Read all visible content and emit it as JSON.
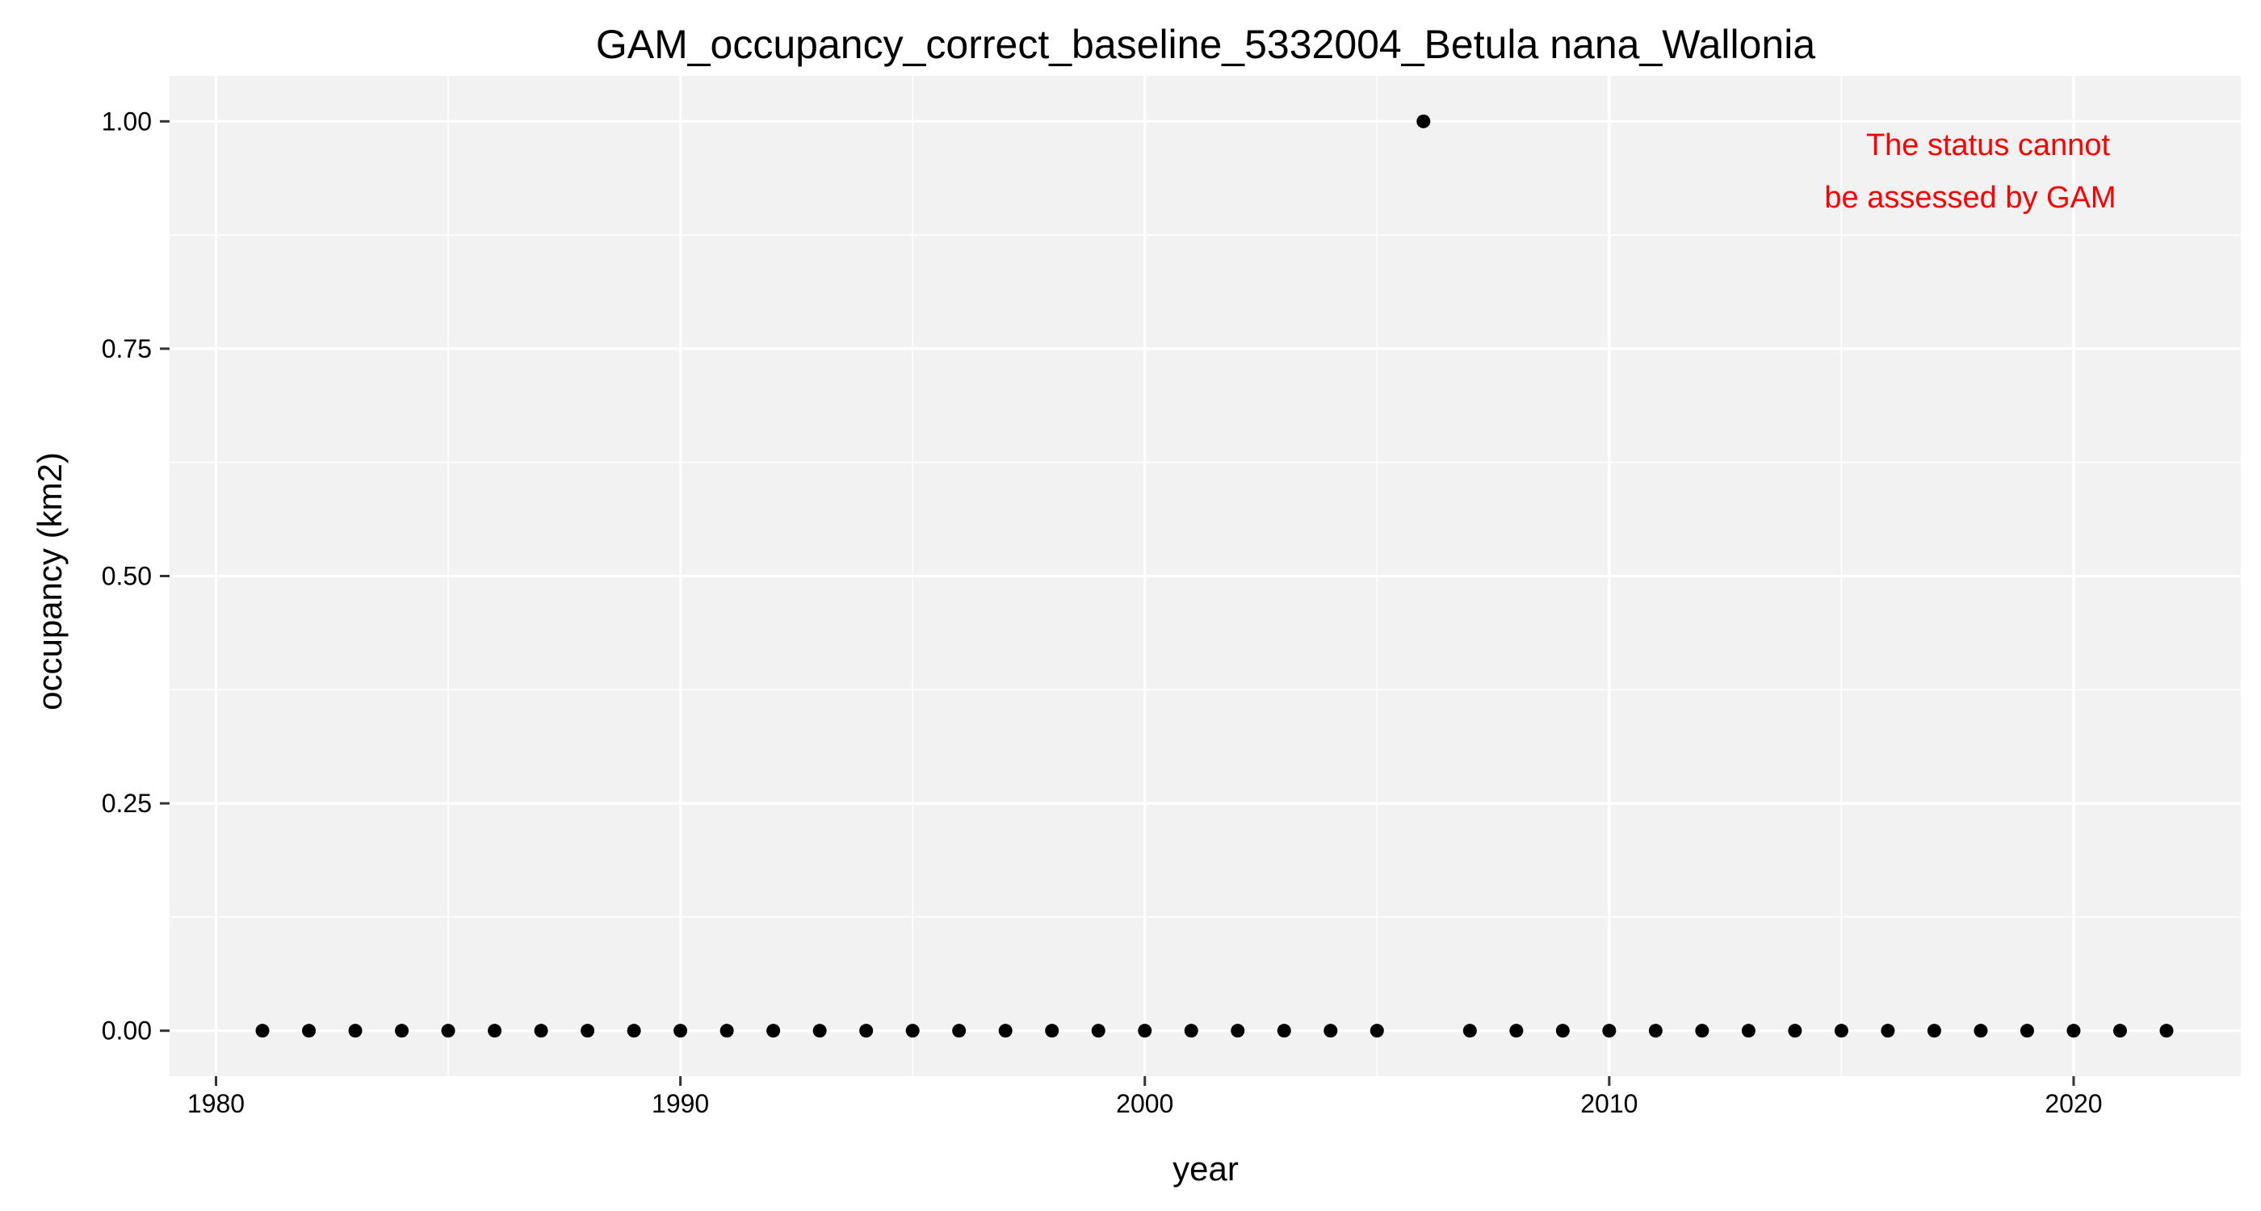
{
  "chart_data": {
    "type": "scatter",
    "title": "GAM_occupancy_correct_baseline_5332004_Betula nana_Wallonia",
    "xlabel": "year",
    "ylabel": "occupancy (km2)",
    "xlim": [
      1979,
      2023.6
    ],
    "ylim": [
      -0.05,
      1.05
    ],
    "x_ticks": [
      1980,
      1990,
      2000,
      2010,
      2020
    ],
    "x_tick_labels": [
      "1980",
      "1990",
      "2000",
      "2010",
      "2020"
    ],
    "y_ticks": [
      0,
      0.25,
      0.5,
      0.75,
      1.0
    ],
    "y_tick_labels": [
      "0.00",
      "0.25",
      "0.50",
      "0.75",
      "1.00"
    ],
    "grid": true,
    "panel_color": "#f2f2f2",
    "point_color": "#000000",
    "annotation_color": "#ff0000",
    "annotation_lines": [
      "The status cannot",
      "be assessed by GAM"
    ],
    "points": [
      {
        "x": 1981,
        "y": 0
      },
      {
        "x": 1982,
        "y": 0
      },
      {
        "x": 1983,
        "y": 0
      },
      {
        "x": 1984,
        "y": 0
      },
      {
        "x": 1985,
        "y": 0
      },
      {
        "x": 1986,
        "y": 0
      },
      {
        "x": 1987,
        "y": 0
      },
      {
        "x": 1988,
        "y": 0
      },
      {
        "x": 1989,
        "y": 0
      },
      {
        "x": 1990,
        "y": 0
      },
      {
        "x": 1991,
        "y": 0
      },
      {
        "x": 1992,
        "y": 0
      },
      {
        "x": 1993,
        "y": 0
      },
      {
        "x": 1994,
        "y": 0
      },
      {
        "x": 1995,
        "y": 0
      },
      {
        "x": 1996,
        "y": 0
      },
      {
        "x": 1997,
        "y": 0
      },
      {
        "x": 1998,
        "y": 0
      },
      {
        "x": 1999,
        "y": 0
      },
      {
        "x": 2000,
        "y": 0
      },
      {
        "x": 2001,
        "y": 0
      },
      {
        "x": 2002,
        "y": 0
      },
      {
        "x": 2003,
        "y": 0
      },
      {
        "x": 2004,
        "y": 0
      },
      {
        "x": 2005,
        "y": 0
      },
      {
        "x": 2006,
        "y": 1
      },
      {
        "x": 2007,
        "y": 0
      },
      {
        "x": 2008,
        "y": 0
      },
      {
        "x": 2009,
        "y": 0
      },
      {
        "x": 2010,
        "y": 0
      },
      {
        "x": 2011,
        "y": 0
      },
      {
        "x": 2012,
        "y": 0
      },
      {
        "x": 2013,
        "y": 0
      },
      {
        "x": 2014,
        "y": 0
      },
      {
        "x": 2015,
        "y": 0
      },
      {
        "x": 2016,
        "y": 0
      },
      {
        "x": 2017,
        "y": 0
      },
      {
        "x": 2018,
        "y": 0
      },
      {
        "x": 2019,
        "y": 0
      },
      {
        "x": 2020,
        "y": 0
      },
      {
        "x": 2021,
        "y": 0
      },
      {
        "x": 2022,
        "y": 0
      }
    ]
  }
}
